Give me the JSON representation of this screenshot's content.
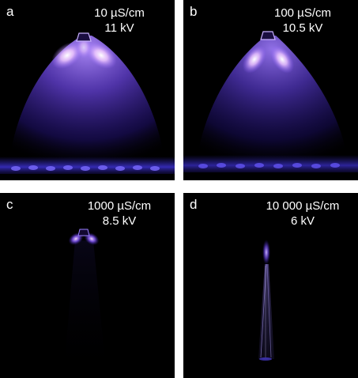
{
  "colors": {
    "background": "#000000",
    "plasma_core": "#ffe8ff",
    "plasma_glow": "#8a5cff",
    "plasma_deep": "#3a1fb0",
    "label_text": "#ffffff"
  },
  "panels": [
    {
      "letter": "a",
      "conductivity": "10 µS/cm",
      "voltage": "11 kV"
    },
    {
      "letter": "b",
      "conductivity": "100 µS/cm",
      "voltage": "10.5 kV"
    },
    {
      "letter": "c",
      "conductivity": "1000 µS/cm",
      "voltage": "8.5 kV"
    },
    {
      "letter": "d",
      "conductivity": "10 000 µS/cm",
      "voltage": "6 kV"
    }
  ]
}
